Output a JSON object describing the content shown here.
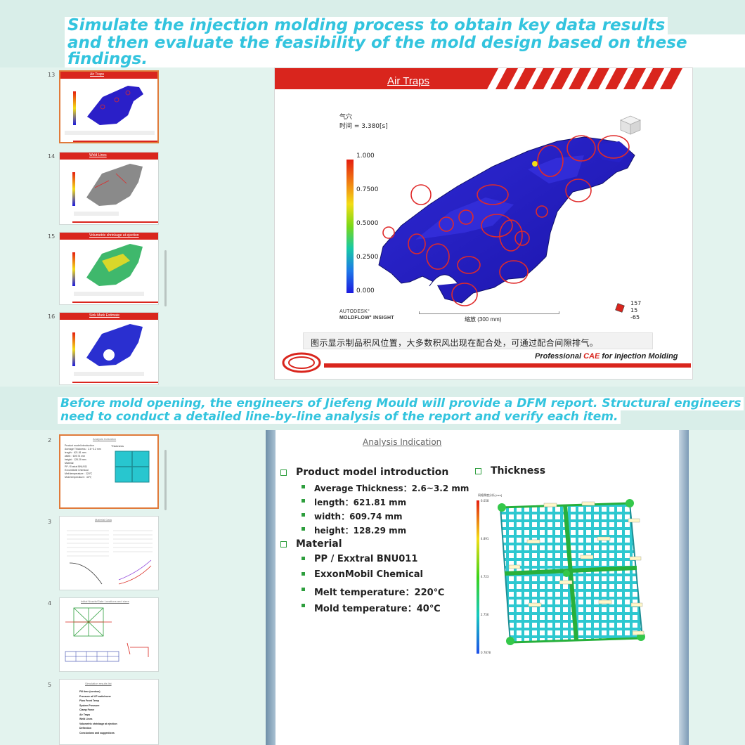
{
  "banners": {
    "top_line1": "Simulate the injection molding process to obtain key data results",
    "top_line2": "and then evaluate the feasibility of the mold design based on these findings.",
    "mid_line1": "Before mold opening, the engineers of Jiefeng Mould will provide a DFM report. Structural engineers",
    "mid_line2": "need to conduct a detailed line-by-line analysis of the report and verify each item."
  },
  "window1": {
    "thumbs": [
      {
        "num": "13",
        "title": "Air Traps",
        "selected": true
      },
      {
        "num": "14",
        "title": "Weld Lines",
        "selected": false
      },
      {
        "num": "15",
        "title": "Volumetric shrinkage at ejection",
        "selected": false
      },
      {
        "num": "16",
        "title": "Sink Mark Estimate",
        "selected": false
      }
    ],
    "slide": {
      "title": "Air Traps",
      "result_name": "气穴",
      "time_label": "时间 = 3.380[s]",
      "legend": [
        "1.000",
        "0.7500",
        "0.5000",
        "0.2500",
        "0.000"
      ],
      "brand_line1": "AUTODESK°",
      "brand_line2": "MOLDFLOW° INSIGHT",
      "scale_label": "缩放 (300 mm)",
      "coords": [
        "157",
        "15",
        "-65"
      ],
      "caption": "图示显示制品积风位置，大多数积风出现在配合处，可通过配合间隙排气。",
      "footer_prefix": "Professional ",
      "footer_cae": "CAE",
      "footer_suffix": " for Injection Molding"
    }
  },
  "window2": {
    "thumbs": [
      {
        "num": "2",
        "title": "Analysis Indication",
        "selected": true
      },
      {
        "num": "3",
        "title": "Material Data",
        "selected": false
      },
      {
        "num": "4",
        "title": "Initial Nozzle/Gate Locations and sizes",
        "selected": false
      },
      {
        "num": "5",
        "title": "Simulation results list",
        "selected": false
      }
    ],
    "thumb5_items": [
      "Fill time (contour)",
      "Pressure at V/P switchover",
      "Flow Front Temp",
      "System Pressure",
      "Clamp Force",
      "Air Traps",
      "Weld Lines",
      "Volumetric shrinkage at ejection",
      "Deflection",
      "Conclusions and suggestions"
    ],
    "slide": {
      "title": "Analysis  Indication",
      "product_heading": "Product model introduction",
      "product_items": [
        "Average Thickness：2.6~3.2 mm",
        "length：621.81 mm",
        "width：609.74 mm",
        "height：128.29 mm"
      ],
      "material_heading": "Material",
      "material_items": [
        "PP / Exxtral BNU011",
        "ExxonMobil Chemical",
        "Melt temperature：220℃",
        "Mold temperature：40℃"
      ],
      "thickness_heading": "Thickness",
      "thickness_legend_title": "网格厚度分析 [mm]",
      "thickness_legend": [
        "6.058",
        "4.891",
        "4.723",
        "2.756",
        "0.7878"
      ]
    }
  }
}
